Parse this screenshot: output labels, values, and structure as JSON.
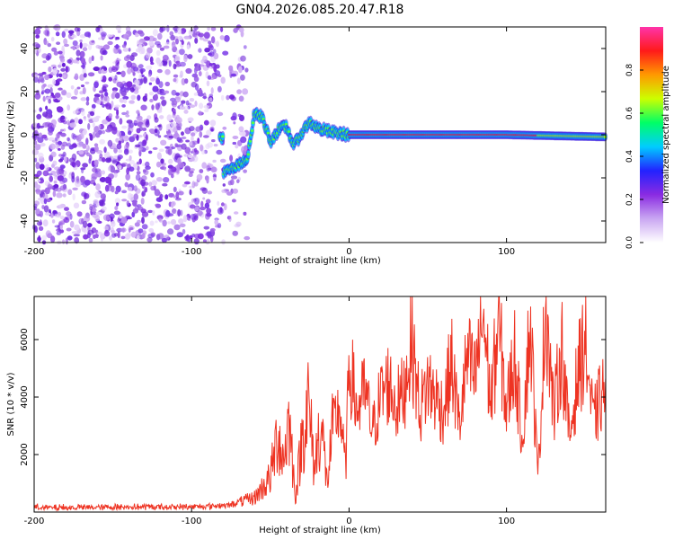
{
  "title": "GN04.2026.085.20.47.R18",
  "chart_data": [
    {
      "type": "heatmap",
      "xlabel": "Height of straight line (km)",
      "ylabel": "Frequency (Hz)",
      "xlim": [
        -200,
        163
      ],
      "ylim": [
        -50,
        50
      ],
      "xticks": [
        -200,
        -100,
        0,
        100
      ],
      "yticks": [
        -40,
        -20,
        0,
        20,
        40
      ],
      "colorbar": {
        "label": "Normalized spectral amplitude",
        "range": [
          0,
          1
        ],
        "ticks": [
          0.0,
          0.2,
          0.4,
          0.6,
          0.8
        ],
        "colors": [
          "#ffffff",
          "#c9a6f2",
          "#8a2be2",
          "#2222ff",
          "#00ccff",
          "#00ff66",
          "#ccff00",
          "#ff9900",
          "#ff1a1a",
          "#ff33aa"
        ]
      },
      "noise_region_x": [
        -200,
        -68
      ],
      "signal_track": [
        {
          "x": -80,
          "y": -18
        },
        {
          "x": -72,
          "y": -15
        },
        {
          "x": -65,
          "y": -12
        },
        {
          "x": -60,
          "y": 10
        },
        {
          "x": -55,
          "y": 8
        },
        {
          "x": -50,
          "y": -3
        },
        {
          "x": -45,
          "y": 2
        },
        {
          "x": -40,
          "y": 4
        },
        {
          "x": -35,
          "y": -5
        },
        {
          "x": -30,
          "y": 1
        },
        {
          "x": -25,
          "y": 6
        },
        {
          "x": -20,
          "y": 3
        },
        {
          "x": -10,
          "y": 1
        },
        {
          "x": 0,
          "y": 0
        },
        {
          "x": 50,
          "y": 0
        },
        {
          "x": 100,
          "y": 0
        },
        {
          "x": 163,
          "y": -1
        }
      ]
    },
    {
      "type": "line",
      "xlabel": "Height of straight line (km)",
      "ylabel": "SNR (10 * v/v)",
      "xlim": [
        -200,
        163
      ],
      "ylim": [
        0,
        7500
      ],
      "xticks": [
        -200,
        -100,
        0,
        100
      ],
      "yticks": [
        2000,
        4000,
        6000
      ],
      "series": [
        {
          "name": "SNR",
          "color": "#ee3322",
          "x": [
            -200,
            -150,
            -100,
            -75,
            -60,
            -50,
            -45,
            -42,
            -38,
            -34,
            -30,
            -26,
            -22,
            -18,
            -14,
            -10,
            -6,
            -2,
            0,
            5,
            10,
            15,
            20,
            25,
            30,
            35,
            38,
            40,
            45,
            50,
            55,
            60,
            65,
            70,
            75,
            80,
            85,
            90,
            95,
            100,
            105,
            110,
            115,
            120,
            125,
            130,
            135,
            140,
            145,
            150,
            155,
            160,
            163
          ],
          "y": [
            150,
            170,
            180,
            250,
            500,
            1200,
            2800,
            1800,
            3200,
            500,
            2500,
            3800,
            1500,
            3200,
            1000,
            3000,
            3600,
            1500,
            5300,
            3500,
            4200,
            2800,
            4000,
            4500,
            3700,
            4200,
            5500,
            5900,
            3500,
            4500,
            4000,
            3500,
            5200,
            3000,
            5300,
            4600,
            7000,
            3800,
            6500,
            3500,
            5500,
            2500,
            6600,
            1200,
            7400,
            3300,
            5800,
            2500,
            4700,
            6000,
            3100,
            4000,
            4300
          ]
        }
      ]
    }
  ]
}
